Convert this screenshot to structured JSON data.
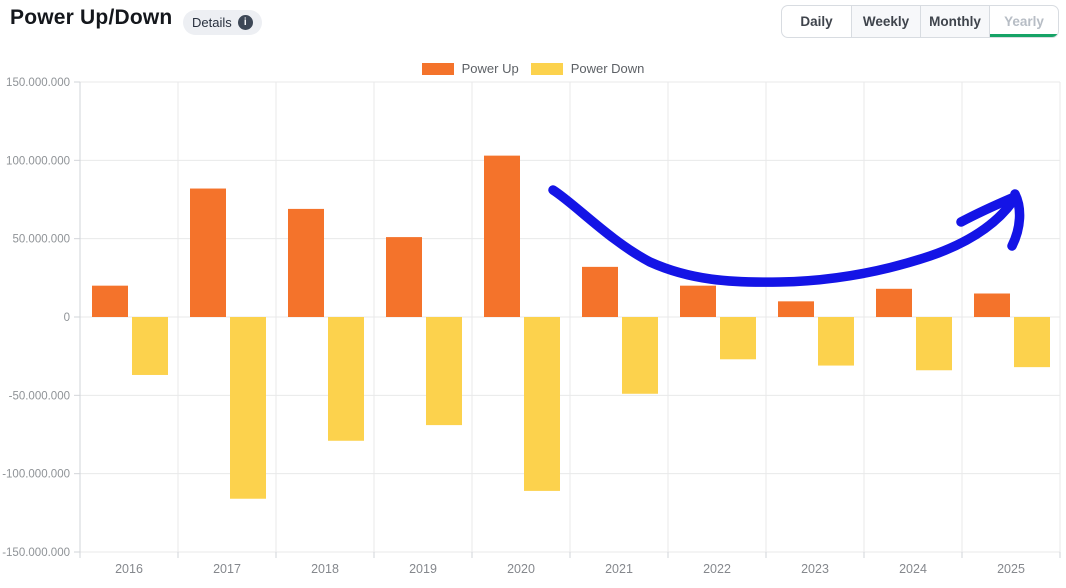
{
  "header": {
    "title": "Power Up/Down",
    "details_label": "Details",
    "info_icon_glyph": "i",
    "active_tab": "Yearly",
    "tabs": [
      {
        "label": "Daily",
        "active": false
      },
      {
        "label": "Weekly",
        "active": false
      },
      {
        "label": "Monthly",
        "active": false
      },
      {
        "label": "Yearly",
        "active": true
      }
    ]
  },
  "legend": [
    {
      "label": "Power Up",
      "color": "#f4732b"
    },
    {
      "label": "Power Down",
      "color": "#fcd24d"
    }
  ],
  "colors": {
    "power_up": "#f4732b",
    "power_down": "#fcd24d",
    "annotation_blue": "#1414e6",
    "tab_active_underline": "#16a366",
    "gridline": "#e8e9ea",
    "axis_line": "#d2d5d9",
    "axis_text": "#8f9397"
  },
  "chart_data": {
    "type": "bar",
    "title": "Power Up/Down",
    "categories": [
      "2016",
      "2017",
      "2018",
      "2019",
      "2020",
      "2021",
      "2022",
      "2023",
      "2024",
      "2025"
    ],
    "series": [
      {
        "name": "Power Up",
        "color": "#f4732b",
        "values": [
          20000000,
          82000000,
          69000000,
          51000000,
          103000000,
          32000000,
          20000000,
          10000000,
          18000000,
          15000000
        ]
      },
      {
        "name": "Power Down",
        "color": "#fcd24d",
        "values": [
          -37000000,
          -116000000,
          -79000000,
          -69000000,
          -111000000,
          -49000000,
          -27000000,
          -31000000,
          -34000000,
          -32000000
        ]
      }
    ],
    "ylim": [
      -150000000,
      150000000
    ],
    "ytick_step": 50000000,
    "ytick_labels": [
      "150.000.000",
      "100.000.000",
      "50.000.000",
      "0",
      "-50.000.000",
      "-100.000.000",
      "-150.000.000"
    ],
    "xlabel": "",
    "ylabel": "",
    "grid": true,
    "legend_position": "top",
    "annotation": {
      "type": "hand_drawn_arrow",
      "description": "blue hand-drawn curved arrow dipping over 2021-2023 then rising to point up-right above 2025",
      "color": "#1414e6",
      "stroke_width": 9.5,
      "paths": [
        "M 553 190 C 575 204, 610 241, 650 262 C 690 280, 730 283, 780 282 C 835 281, 885 271, 930 256 C 965 244, 995 226, 1013 201",
        "M 961 222 C 978 213, 998 204, 1012 198",
        "M 1015 194 C 1022 208, 1021 228, 1012 246"
      ]
    }
  }
}
